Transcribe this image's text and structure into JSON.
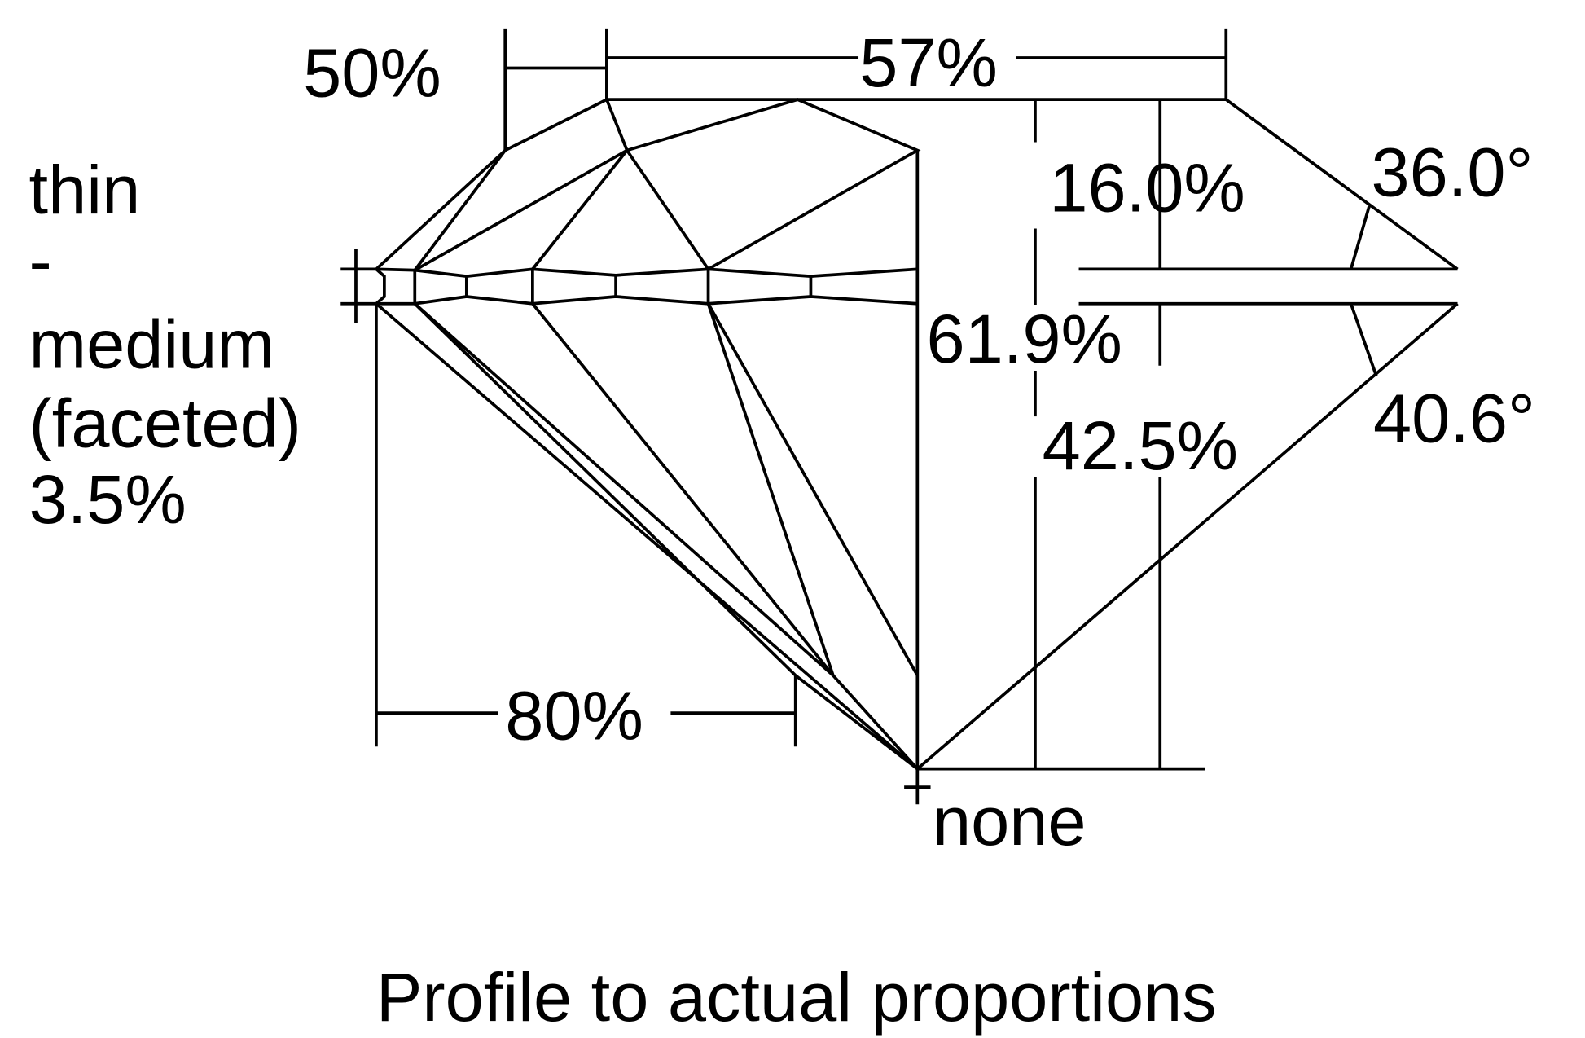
{
  "labels": {
    "girdle_line1": "thin",
    "girdle_line2": "-",
    "girdle_line3": "medium",
    "girdle_line4": "(faceted)",
    "girdle_pct": "3.5%",
    "star_length": "50%",
    "table": "57%",
    "crown_height": "16.0%",
    "total_depth": "61.9%",
    "pavilion_depth": "42.5%",
    "crown_angle": "36.0°",
    "pavilion_angle": "40.6°",
    "lower_half": "80%",
    "culet": "none",
    "caption": "Profile to actual proportions"
  },
  "colors": {
    "line": "#000000",
    "background": "#ffffff"
  }
}
